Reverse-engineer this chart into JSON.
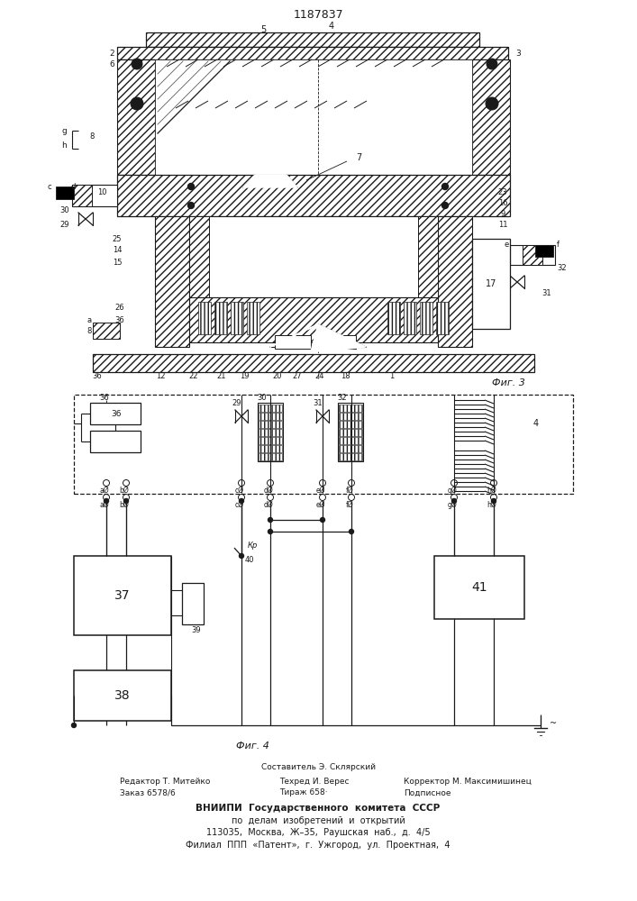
{
  "title": "1187837",
  "fig3_label": "Фиг. 3",
  "fig4_label": "Фиг. 4",
  "footer_line0": "Составитель Э. Склярский",
  "footer_line1a": "Редактор Т. Митейко",
  "footer_line1b": "Техред И. Верес",
  "footer_line1c": "Корректор М. Максимишинец",
  "footer_line2a": "Заказ 6578/6",
  "footer_line2b": "Тираж 658·",
  "footer_line2c": "Подписное",
  "footer_line3": "ВНИИПИ  Государственного  комитета  СССР",
  "footer_line4": "по  делам  изобретений  и  открытий",
  "footer_line5": "113035,  Москва,  Ж–35,  Раушская  наб.,  д.  4/5",
  "footer_line6": "Филиал  ППП  «Патент»,  г.  Ужгород,  ул.  Проектная,  4",
  "bg_color": "#ffffff",
  "lc": "#1a1a1a"
}
